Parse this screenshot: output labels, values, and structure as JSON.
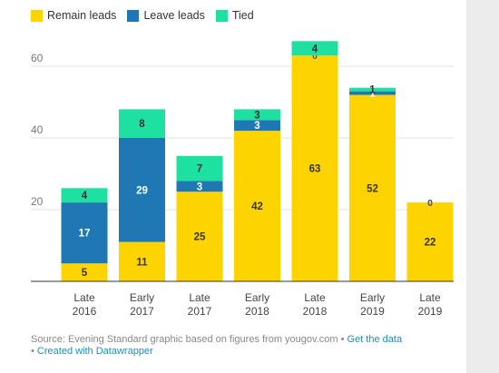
{
  "chart_data": {
    "type": "bar",
    "stacked": true,
    "categories": [
      [
        "Late",
        "2016"
      ],
      [
        "Early",
        "2017"
      ],
      [
        "Late",
        "2017"
      ],
      [
        "Early",
        "2018"
      ],
      [
        "Late",
        "2018"
      ],
      [
        "Early",
        "2019"
      ],
      [
        "Late",
        "2019"
      ]
    ],
    "series": [
      {
        "name": "Remain leads",
        "color": "#fdd400",
        "values": [
          5,
          11,
          25,
          42,
          63,
          52,
          22
        ]
      },
      {
        "name": "Leave leads",
        "color": "#1f77b4",
        "values": [
          17,
          29,
          3,
          3,
          0,
          1,
          0
        ]
      },
      {
        "name": "Tied",
        "color": "#1ee0a1",
        "values": [
          4,
          8,
          7,
          3,
          4,
          1,
          0
        ]
      }
    ],
    "ylim": [
      0,
      70
    ],
    "yticks": [
      20,
      40,
      60
    ],
    "grid": true,
    "legend": "top-left"
  },
  "footer": {
    "source": "Source: Evening Standard graphic based on figures from yougov.com",
    "sep": " • ",
    "get_data": "Get the data",
    "bullet": "• ",
    "created": "Created with Datawrapper"
  }
}
